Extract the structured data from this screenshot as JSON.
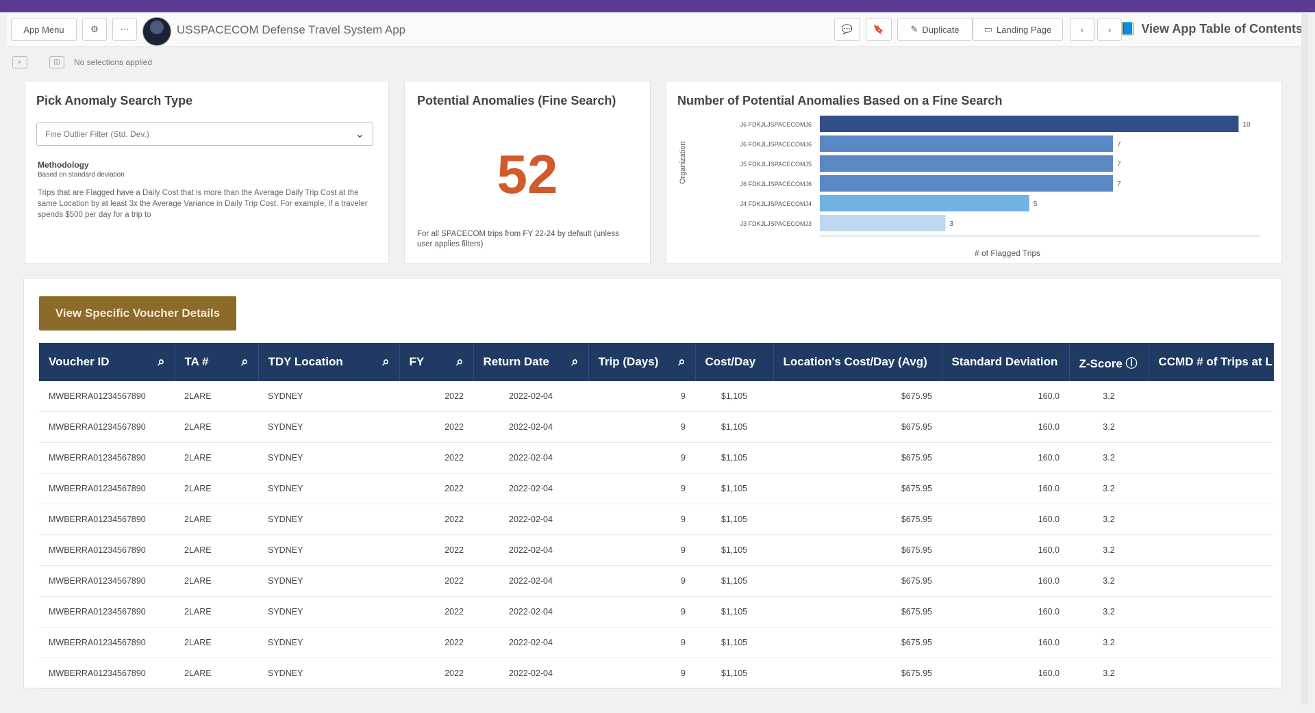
{
  "app": {
    "title": "USSPACECOM Defense Travel System App",
    "menu_label": "App Menu",
    "duplicate_label": "Duplicate",
    "landing_label": "Landing Page",
    "toc_label": "View App Table of Contents",
    "selections_text": "No selections applied"
  },
  "search_type": {
    "title": "Pick Anomaly Search Type",
    "selected": "Fine Outlier Filter (Std. Dev.)",
    "methodology_title": "Methodology",
    "methodology_sub": "Based on standard deviation",
    "methodology_body": "Trips that are Flagged have a Daily Cost that is more than the Average Daily Trip Cost at the same Location by at least 3x the Average Variance in Daily Trip Cost. For example, if a traveler spends $500 per day for a trip to"
  },
  "kpi": {
    "title": "Potential Anomalies (Fine Search)",
    "value": "52",
    "note": "For all SPACECOM trips from FY 22-24 by default (unless user applies filters)"
  },
  "chart_data": {
    "type": "bar",
    "orientation": "horizontal",
    "title": "Number of Potential Anomalies Based on a Fine Search",
    "xlabel": "# of Flagged Trips",
    "ylabel": "Organization",
    "categories": [
      "J6 FDKJLJSPACECOMJ6",
      "J6 FDKJLJSPACECOMJ6",
      "J5 FDKJLJSPACECOMJ5",
      "J6 FDKJLJSPACECOMJ6",
      "J4 FDKJLJSPACECOMJ4",
      "J3 FDKJLJSPACECOMJ3"
    ],
    "values": [
      10,
      7,
      7,
      7,
      5,
      3
    ],
    "value_labels": [
      "10",
      "7",
      "7",
      "7",
      "5",
      "3"
    ],
    "colors": [
      "#2f4f86",
      "#5b87c4",
      "#5b87c4",
      "#5b87c4",
      "#6fb3e3",
      "#bcd9f1"
    ],
    "xlim": [
      0,
      10.5
    ]
  },
  "table": {
    "button_label": "View Specific Voucher Details",
    "columns": [
      "Voucher ID",
      "TA #",
      "TDY Location",
      "FY",
      "Return Date",
      "Trip (Days)",
      "Cost/Day",
      "Location's Cost/Day (Avg)",
      "Standard Deviation",
      "Z-Score ⓘ",
      "CCMD # of Trips at L"
    ],
    "rows": [
      [
        "MWBERRA01234567890",
        "2LARE",
        "SYDNEY",
        "2022",
        "2022-02-04",
        "9",
        "$1,105",
        "$675.95",
        "160.0",
        "3.2",
        ""
      ],
      [
        "MWBERRA01234567890",
        "2LARE",
        "SYDNEY",
        "2022",
        "2022-02-04",
        "9",
        "$1,105",
        "$675.95",
        "160.0",
        "3.2",
        ""
      ],
      [
        "MWBERRA01234567890",
        "2LARE",
        "SYDNEY",
        "2022",
        "2022-02-04",
        "9",
        "$1,105",
        "$675.95",
        "160.0",
        "3.2",
        ""
      ],
      [
        "MWBERRA01234567890",
        "2LARE",
        "SYDNEY",
        "2022",
        "2022-02-04",
        "9",
        "$1,105",
        "$675.95",
        "160.0",
        "3.2",
        ""
      ],
      [
        "MWBERRA01234567890",
        "2LARE",
        "SYDNEY",
        "2022",
        "2022-02-04",
        "9",
        "$1,105",
        "$675.95",
        "160.0",
        "3.2",
        ""
      ],
      [
        "MWBERRA01234567890",
        "2LARE",
        "SYDNEY",
        "2022",
        "2022-02-04",
        "9",
        "$1,105",
        "$675.95",
        "160.0",
        "3.2",
        ""
      ],
      [
        "MWBERRA01234567890",
        "2LARE",
        "SYDNEY",
        "2022",
        "2022-02-04",
        "9",
        "$1,105",
        "$675.95",
        "160.0",
        "3.2",
        ""
      ],
      [
        "MWBERRA01234567890",
        "2LARE",
        "SYDNEY",
        "2022",
        "2022-02-04",
        "9",
        "$1,105",
        "$675.95",
        "160.0",
        "3.2",
        ""
      ],
      [
        "MWBERRA01234567890",
        "2LARE",
        "SYDNEY",
        "2022",
        "2022-02-04",
        "9",
        "$1,105",
        "$675.95",
        "160.0",
        "3.2",
        ""
      ],
      [
        "MWBERRA01234567890",
        "2LARE",
        "SYDNEY",
        "2022",
        "2022-02-04",
        "9",
        "$1,105",
        "$675.95",
        "160.0",
        "3.2",
        ""
      ]
    ]
  }
}
